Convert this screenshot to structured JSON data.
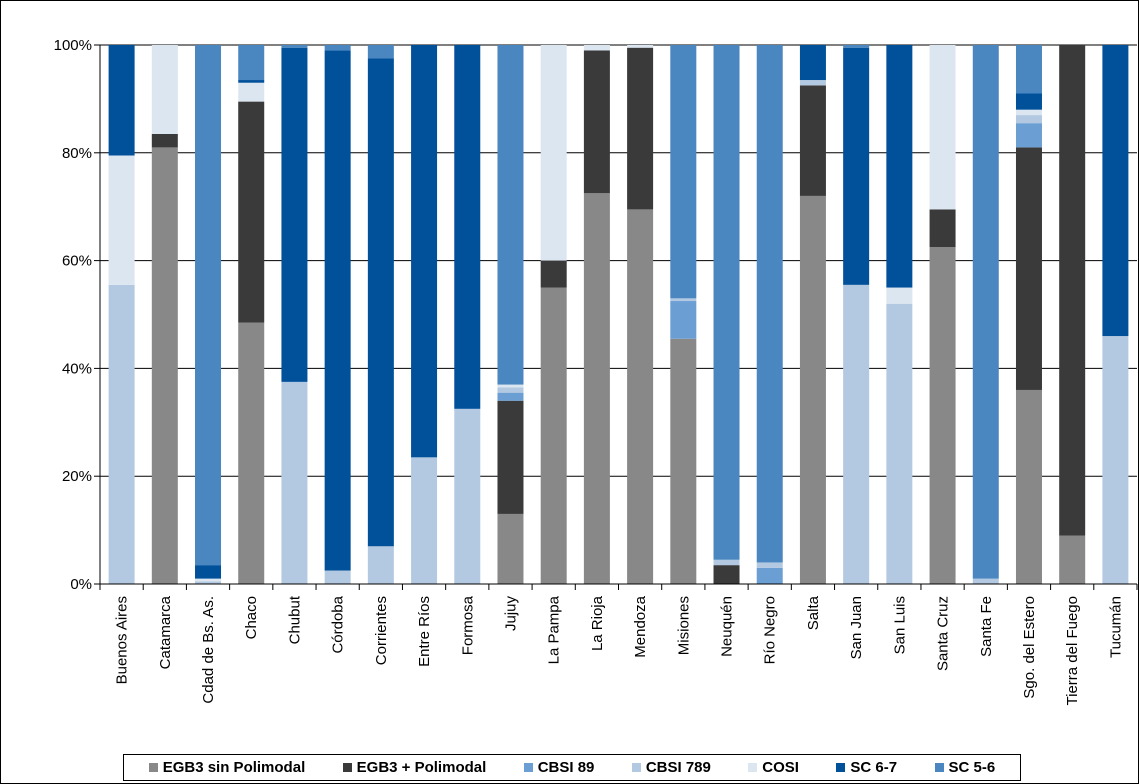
{
  "chart_data": {
    "type": "bar",
    "stacked": true,
    "percent": true,
    "ylim": [
      0,
      100
    ],
    "y_ticks": [
      "0%",
      "20%",
      "40%",
      "60%",
      "80%",
      "100%"
    ],
    "grid": true,
    "legend_position": "bottom",
    "categories": [
      "Buenos Aires",
      "Catamarca",
      "Cdad de Bs. As.",
      "Chaco",
      "Chubut",
      "Córdoba",
      "Corrientes",
      "Entre Ríos",
      "Formosa",
      "Jujuy",
      "La Pampa",
      "La Rioja",
      "Mendoza",
      "Misiones",
      "Neuquén",
      "Río Negro",
      "Salta",
      "San Juan",
      "San Luis",
      "Santa Cruz",
      "Santa Fe",
      "Sgo. del Estero",
      "Tierra del Fuego",
      "Tucumán"
    ],
    "series": [
      {
        "name": "EGB3 sin Polimodal",
        "color": "#888888",
        "values": [
          0,
          81,
          0,
          48.5,
          0,
          0,
          0,
          0,
          0,
          13,
          55,
          72.5,
          69.5,
          45.5,
          0,
          0,
          72,
          0,
          0,
          62.5,
          0,
          36,
          9,
          0
        ]
      },
      {
        "name": "EGB3 + Polimodal",
        "color": "#3a3a3a",
        "values": [
          0,
          2.5,
          0,
          41,
          0,
          0,
          0,
          0,
          0,
          21,
          5,
          26.5,
          30,
          0,
          3.5,
          0,
          20.5,
          0,
          0,
          7,
          0,
          45,
          91,
          0
        ]
      },
      {
        "name": "CBSI 89",
        "color": "#6b9fd4",
        "values": [
          0,
          0,
          0,
          0,
          0,
          0,
          0,
          0,
          0,
          1.5,
          0,
          0,
          0,
          7,
          0,
          3,
          0,
          0,
          0,
          0,
          0,
          4.5,
          0,
          0
        ]
      },
      {
        "name": "CBSI 789",
        "color": "#b3c9e1",
        "values": [
          55.5,
          0,
          0.5,
          0,
          37.5,
          2.5,
          7,
          23.5,
          32.5,
          1,
          0,
          0,
          0,
          0.5,
          1,
          1,
          1,
          55.5,
          52,
          0,
          1,
          1.5,
          0,
          46
        ]
      },
      {
        "name": "COSI",
        "color": "#dce6f1",
        "values": [
          24,
          16.5,
          0.5,
          3.5,
          0,
          0,
          0,
          0,
          0,
          0.5,
          40,
          1,
          0.5,
          0,
          0,
          0,
          0,
          0,
          3,
          30.5,
          0,
          1,
          0,
          0
        ]
      },
      {
        "name": "SC 6-7",
        "color": "#00509a",
        "values": [
          20.5,
          0,
          2.5,
          0.5,
          62,
          96.5,
          90.5,
          76.5,
          67.5,
          0,
          0,
          0,
          0,
          0,
          0,
          0,
          6.5,
          44,
          45,
          0,
          0,
          3,
          0,
          54
        ]
      },
      {
        "name": "SC 5-6",
        "color": "#4a86c0",
        "values": [
          0,
          0,
          96.5,
          6.5,
          0.5,
          1,
          2.5,
          0,
          0,
          63,
          0,
          0,
          0,
          47,
          95.5,
          96,
          0,
          0.5,
          0,
          0,
          99,
          9,
          0,
          0
        ]
      }
    ]
  }
}
